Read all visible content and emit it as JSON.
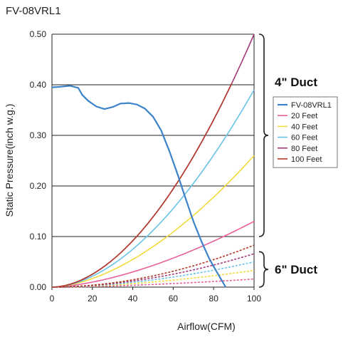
{
  "chart_data": {
    "type": "line",
    "title": "FV-08VRL1",
    "xlabel": "Airflow(CFM)",
    "ylabel": "Static Pressure(inch w.g.)",
    "xlim": [
      0,
      100
    ],
    "ylim": [
      0,
      0.5
    ],
    "x_ticks": [
      "0",
      "20",
      "40",
      "60",
      "80",
      "100"
    ],
    "y_ticks": [
      "0.00",
      "0.10",
      "0.20",
      "0.30",
      "0.40",
      "0.50"
    ],
    "grid": "horizontal",
    "legend_position": "right",
    "fan_curve": {
      "name": "FV-08VRL1",
      "color": "#3b82c8",
      "points": [
        [
          0,
          0.395
        ],
        [
          4,
          0.396
        ],
        [
          9,
          0.398
        ],
        [
          13,
          0.394
        ],
        [
          15,
          0.38
        ],
        [
          18,
          0.368
        ],
        [
          22,
          0.357
        ],
        [
          26,
          0.352
        ],
        [
          30,
          0.356
        ],
        [
          34,
          0.363
        ],
        [
          38,
          0.364
        ],
        [
          42,
          0.361
        ],
        [
          46,
          0.353
        ],
        [
          50,
          0.337
        ],
        [
          54,
          0.31
        ],
        [
          58,
          0.27
        ],
        [
          62,
          0.225
        ],
        [
          66,
          0.177
        ],
        [
          70,
          0.13
        ],
        [
          74,
          0.09
        ],
        [
          78,
          0.055
        ],
        [
          82,
          0.027
        ],
        [
          86,
          0.0
        ]
      ]
    },
    "series": [
      {
        "name": "20 Feet",
        "color": "#e8609a",
        "group": "4in",
        "k": 0.13,
        "exp": 1.6
      },
      {
        "name": "40 Feet",
        "color": "#f1dc3c",
        "group": "4in",
        "k": 0.26,
        "exp": 1.7
      },
      {
        "name": "60 Feet",
        "color": "#69c3e6",
        "group": "4in",
        "k": 0.39,
        "exp": 1.8
      },
      {
        "name": "80 Feet",
        "color": "#a33a7a",
        "group": "4in",
        "k": 0.5,
        "exp": 1.85,
        "xmax": 100
      },
      {
        "name": "100 Feet",
        "color": "#b23a2a",
        "group": "4in",
        "k": 0.5,
        "exp": 1.85,
        "xmax": 89
      },
      {
        "name": "6in-20",
        "color": "#e8609a",
        "group": "6in",
        "k": 0.016,
        "exp": 1.6
      },
      {
        "name": "6in-40",
        "color": "#f1dc3c",
        "group": "6in",
        "k": 0.033,
        "exp": 1.7
      },
      {
        "name": "6in-60",
        "color": "#69c3e6",
        "group": "6in",
        "k": 0.05,
        "exp": 1.8
      },
      {
        "name": "6in-80",
        "color": "#a33a7a",
        "group": "6in",
        "k": 0.066,
        "exp": 1.85
      },
      {
        "name": "6in-100",
        "color": "#b23a2a",
        "group": "6in",
        "k": 0.083,
        "exp": 1.9
      }
    ],
    "legend": [
      "FV-08VRL1",
      "20 Feet",
      "40 Feet",
      "60 Feet",
      "80 Feet",
      "100 Feet"
    ],
    "annotations": [
      {
        "text": "4\" Duct",
        "range": [
          0.1,
          0.5
        ]
      },
      {
        "text": "6\" Duct",
        "range": [
          0.0,
          0.07
        ]
      }
    ]
  }
}
